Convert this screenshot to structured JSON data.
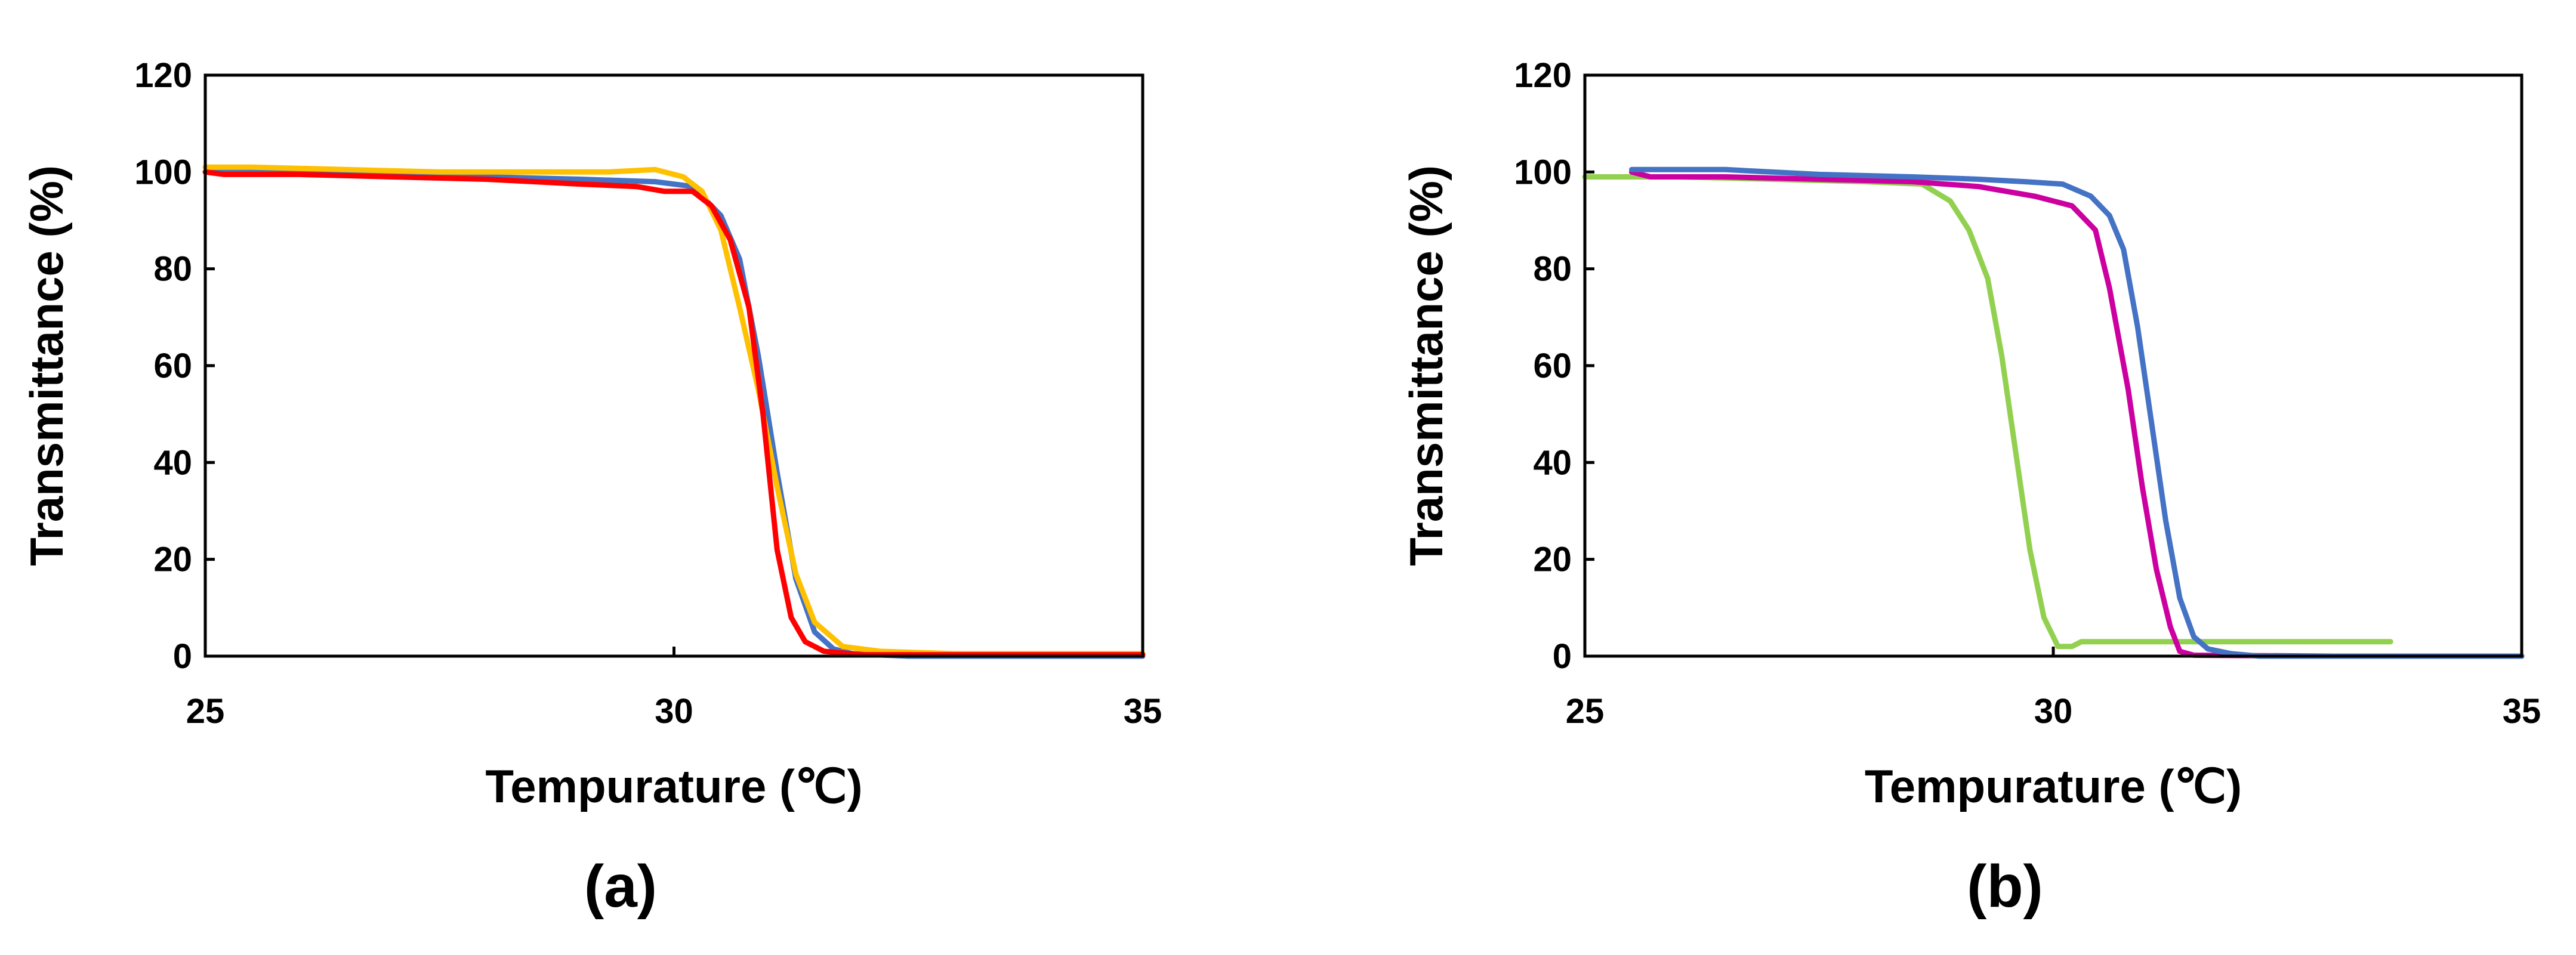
{
  "chart_data": [
    {
      "type": "line",
      "panel_label": "(a)",
      "xlabel": "Tempurature (℃)",
      "ylabel": "Transmittance (%)",
      "xlim": [
        25,
        35
      ],
      "ylim": [
        0,
        120
      ],
      "xticks": [
        25,
        30,
        35
      ],
      "yticks": [
        0,
        20,
        40,
        60,
        80,
        100,
        120
      ],
      "grid": false,
      "series": [
        {
          "color": "#4472C4",
          "points": [
            [
              25.0,
              100.0
            ],
            [
              26.0,
              100.0
            ],
            [
              27.0,
              99.5
            ],
            [
              28.0,
              99.0
            ],
            [
              29.0,
              98.5
            ],
            [
              29.8,
              98.0
            ],
            [
              30.2,
              97.0
            ],
            [
              30.5,
              91.0
            ],
            [
              30.7,
              82.0
            ],
            [
              30.9,
              62.0
            ],
            [
              31.1,
              38.0
            ],
            [
              31.3,
              16.0
            ],
            [
              31.5,
              5.0
            ],
            [
              31.7,
              1.5
            ],
            [
              31.9,
              0.5
            ],
            [
              32.5,
              0.0
            ],
            [
              35.0,
              0.0
            ]
          ]
        },
        {
          "color": "#FFC000",
          "points": [
            [
              25.0,
              101.0
            ],
            [
              25.5,
              101.0
            ],
            [
              26.5,
              100.5
            ],
            [
              27.5,
              100.0
            ],
            [
              28.5,
              100.0
            ],
            [
              29.3,
              100.0
            ],
            [
              29.8,
              100.5
            ],
            [
              30.1,
              99.0
            ],
            [
              30.3,
              96.0
            ],
            [
              30.5,
              88.0
            ],
            [
              30.7,
              72.0
            ],
            [
              30.9,
              55.0
            ],
            [
              31.1,
              35.0
            ],
            [
              31.3,
              17.0
            ],
            [
              31.5,
              7.0
            ],
            [
              31.8,
              2.0
            ],
            [
              32.2,
              1.0
            ],
            [
              33.0,
              0.5
            ],
            [
              35.0,
              0.5
            ]
          ]
        },
        {
          "color": "#FF0000",
          "points": [
            [
              25.0,
              100.0
            ],
            [
              25.2,
              99.5
            ],
            [
              26.0,
              99.5
            ],
            [
              27.0,
              99.0
            ],
            [
              28.0,
              98.5
            ],
            [
              29.0,
              97.5
            ],
            [
              29.6,
              97.0
            ],
            [
              29.9,
              96.0
            ],
            [
              30.2,
              96.0
            ],
            [
              30.4,
              93.0
            ],
            [
              30.6,
              86.0
            ],
            [
              30.8,
              72.0
            ],
            [
              30.95,
              50.0
            ],
            [
              31.1,
              22.0
            ],
            [
              31.25,
              8.0
            ],
            [
              31.4,
              3.0
            ],
            [
              31.6,
              1.0
            ],
            [
              32.0,
              0.3
            ],
            [
              35.0,
              0.3
            ]
          ]
        }
      ]
    },
    {
      "type": "line",
      "panel_label": "(b)",
      "xlabel": "Tempurature (℃)",
      "ylabel": "Transmittance (%)",
      "xlim": [
        25,
        35
      ],
      "ylim": [
        0,
        120
      ],
      "xticks": [
        25,
        30,
        35
      ],
      "yticks": [
        0,
        20,
        40,
        60,
        80,
        100,
        120
      ],
      "grid": false,
      "series": [
        {
          "color": "#92D050",
          "points": [
            [
              25.0,
              99.0
            ],
            [
              26.0,
              99.0
            ],
            [
              27.0,
              98.5
            ],
            [
              28.0,
              98.0
            ],
            [
              28.6,
              97.5
            ],
            [
              28.9,
              94.0
            ],
            [
              29.1,
              88.0
            ],
            [
              29.3,
              78.0
            ],
            [
              29.45,
              62.0
            ],
            [
              29.6,
              42.0
            ],
            [
              29.75,
              22.0
            ],
            [
              29.9,
              8.0
            ],
            [
              30.05,
              2.0
            ],
            [
              30.2,
              2.0
            ],
            [
              30.3,
              3.0
            ],
            [
              31.0,
              3.0
            ],
            [
              32.0,
              3.0
            ],
            [
              33.0,
              3.0
            ],
            [
              33.6,
              3.0
            ]
          ]
        },
        {
          "color": "#CC00A0",
          "points": [
            [
              25.5,
              100.0
            ],
            [
              25.7,
              99.0
            ],
            [
              26.5,
              99.0
            ],
            [
              27.5,
              98.5
            ],
            [
              28.5,
              98.0
            ],
            [
              29.2,
              97.0
            ],
            [
              29.8,
              95.0
            ],
            [
              30.2,
              93.0
            ],
            [
              30.45,
              88.0
            ],
            [
              30.6,
              76.0
            ],
            [
              30.8,
              55.0
            ],
            [
              30.95,
              35.0
            ],
            [
              31.1,
              18.0
            ],
            [
              31.25,
              6.0
            ],
            [
              31.35,
              1.0
            ],
            [
              31.5,
              0.2
            ],
            [
              33.0,
              0.0
            ],
            [
              35.0,
              0.0
            ]
          ]
        },
        {
          "color": "#4472C4",
          "points": [
            [
              25.5,
              100.5
            ],
            [
              26.5,
              100.5
            ],
            [
              27.5,
              99.5
            ],
            [
              28.5,
              99.0
            ],
            [
              29.2,
              98.5
            ],
            [
              29.7,
              98.0
            ],
            [
              30.1,
              97.5
            ],
            [
              30.4,
              95.0
            ],
            [
              30.6,
              91.0
            ],
            [
              30.75,
              84.0
            ],
            [
              30.9,
              68.0
            ],
            [
              31.05,
              48.0
            ],
            [
              31.2,
              28.0
            ],
            [
              31.35,
              12.0
            ],
            [
              31.5,
              4.0
            ],
            [
              31.65,
              1.5
            ],
            [
              31.9,
              0.5
            ],
            [
              32.2,
              0.0
            ],
            [
              35.0,
              0.0
            ]
          ]
        }
      ]
    }
  ]
}
